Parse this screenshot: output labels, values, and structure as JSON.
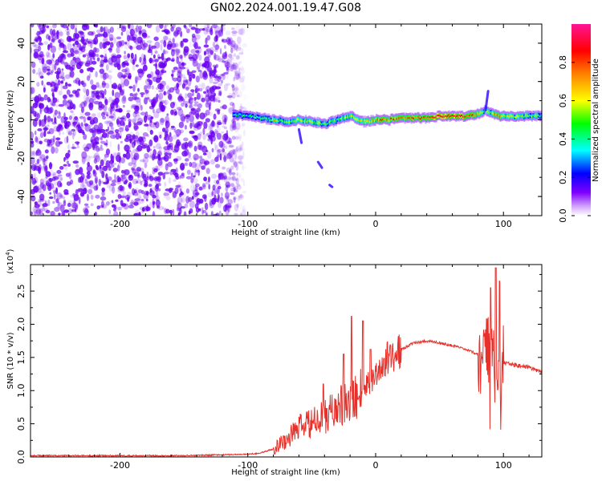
{
  "title": "GN02.2024.001.19.47.G08",
  "chart_data": [
    {
      "type": "heatmap",
      "xlabel": "Height of straight line (km)",
      "ylabel": "Frequency (Hz)",
      "xlim": [
        -270,
        130
      ],
      "ylim": [
        -50,
        50
      ],
      "x_ticks": [
        -200,
        -100,
        0,
        100
      ],
      "x_tick_labels": [
        "-200",
        "-100",
        "0",
        "100"
      ],
      "y_ticks": [
        -40,
        -20,
        0,
        20,
        40
      ],
      "y_tick_labels": [
        "-40",
        "-20",
        "0",
        "20",
        "40"
      ],
      "colorbar": {
        "label": "Normalized spectral amplitude",
        "range": [
          0,
          1
        ],
        "ticks": [
          0.0,
          0.2,
          0.4,
          0.6,
          0.8
        ],
        "tick_labels": [
          "0.0",
          "0.2",
          "0.4",
          "0.6",
          "0.8"
        ],
        "colormap": "rainbow-purple-to-magenta"
      },
      "noise_region_x": [
        -270,
        -105
      ],
      "noise_color": "#6a00f0",
      "ridge": {
        "x": [
          -112,
          -100,
          -90,
          -80,
          -70,
          -60,
          -50,
          -40,
          -30,
          -20,
          -10,
          0,
          10,
          20,
          30,
          40,
          50,
          60,
          70,
          80,
          85,
          90,
          95,
          100,
          110,
          120,
          130
        ],
        "frequency": [
          3,
          2,
          1,
          0,
          -1,
          0,
          -1,
          -2,
          0,
          2,
          -1,
          0,
          0,
          1,
          1,
          1,
          2,
          2,
          2,
          3,
          5,
          4,
          2,
          2,
          2,
          2,
          2
        ],
        "amplitude": [
          0.35,
          0.4,
          0.45,
          0.5,
          0.5,
          0.55,
          0.55,
          0.5,
          0.5,
          0.55,
          0.6,
          0.7,
          0.75,
          0.75,
          0.8,
          0.85,
          0.9,
          0.9,
          0.85,
          0.7,
          0.5,
          0.55,
          0.7,
          0.6,
          0.5,
          0.5,
          0.45
        ]
      },
      "spurs": [
        {
          "x": [
            -60,
            -58
          ],
          "frequency": [
            -5,
            -12
          ]
        },
        {
          "x": [
            -45,
            -42
          ],
          "frequency": [
            -22,
            -25
          ]
        },
        {
          "x": [
            -36,
            -34
          ],
          "frequency": [
            -34,
            -35
          ]
        },
        {
          "x": [
            86,
            88
          ],
          "frequency": [
            5,
            15
          ]
        }
      ]
    },
    {
      "type": "line",
      "xlabel": "Height of straight line (km)",
      "ylabel": "SNR (10 * v/v)",
      "y_multiplier": "(x10",
      "y_multiplier_exp": "4",
      "y_multiplier_close": ")",
      "xlim": [
        -270,
        130
      ],
      "ylim": [
        0,
        2.9
      ],
      "x_ticks": [
        -200,
        -100,
        0,
        100
      ],
      "x_tick_labels": [
        "-200",
        "-100",
        "0",
        "100"
      ],
      "y_ticks": [
        0.0,
        0.5,
        1.0,
        1.5,
        2.0,
        2.5
      ],
      "y_tick_labels": [
        "0.0",
        "0.5",
        "1.0",
        "1.5",
        "2.0",
        "2.5"
      ],
      "color": "#e8302a",
      "series": [
        {
          "x": [
            -270,
            -200,
            -150,
            -100,
            -90,
            -80,
            -75,
            -70,
            -60,
            -50,
            -40,
            -30,
            -20,
            -10,
            0,
            10,
            20,
            30,
            40,
            50,
            60,
            70,
            80,
            85,
            90,
            92,
            95,
            97,
            100,
            110,
            120,
            130
          ],
          "values": [
            0.02,
            0.02,
            0.02,
            0.04,
            0.06,
            0.12,
            0.2,
            0.25,
            0.45,
            0.5,
            0.6,
            0.75,
            0.8,
            1.05,
            1.25,
            1.5,
            1.62,
            1.72,
            1.75,
            1.72,
            1.68,
            1.62,
            1.55,
            1.5,
            1.5,
            1.4,
            1.45,
            1.4,
            1.42,
            1.38,
            1.35,
            1.28
          ]
        }
      ],
      "spikes": [
        {
          "x": -41,
          "value": 1.1
        },
        {
          "x": -25,
          "value": 1.55
        },
        {
          "x": -19,
          "value": 2.12
        },
        {
          "x": -10,
          "value": 2.05
        },
        {
          "x": -4,
          "value": 1.62
        },
        {
          "x": 90,
          "value": 2.55
        },
        {
          "x": 94,
          "value": 2.85
        },
        {
          "x": 97,
          "value": 2.65
        }
      ]
    }
  ]
}
